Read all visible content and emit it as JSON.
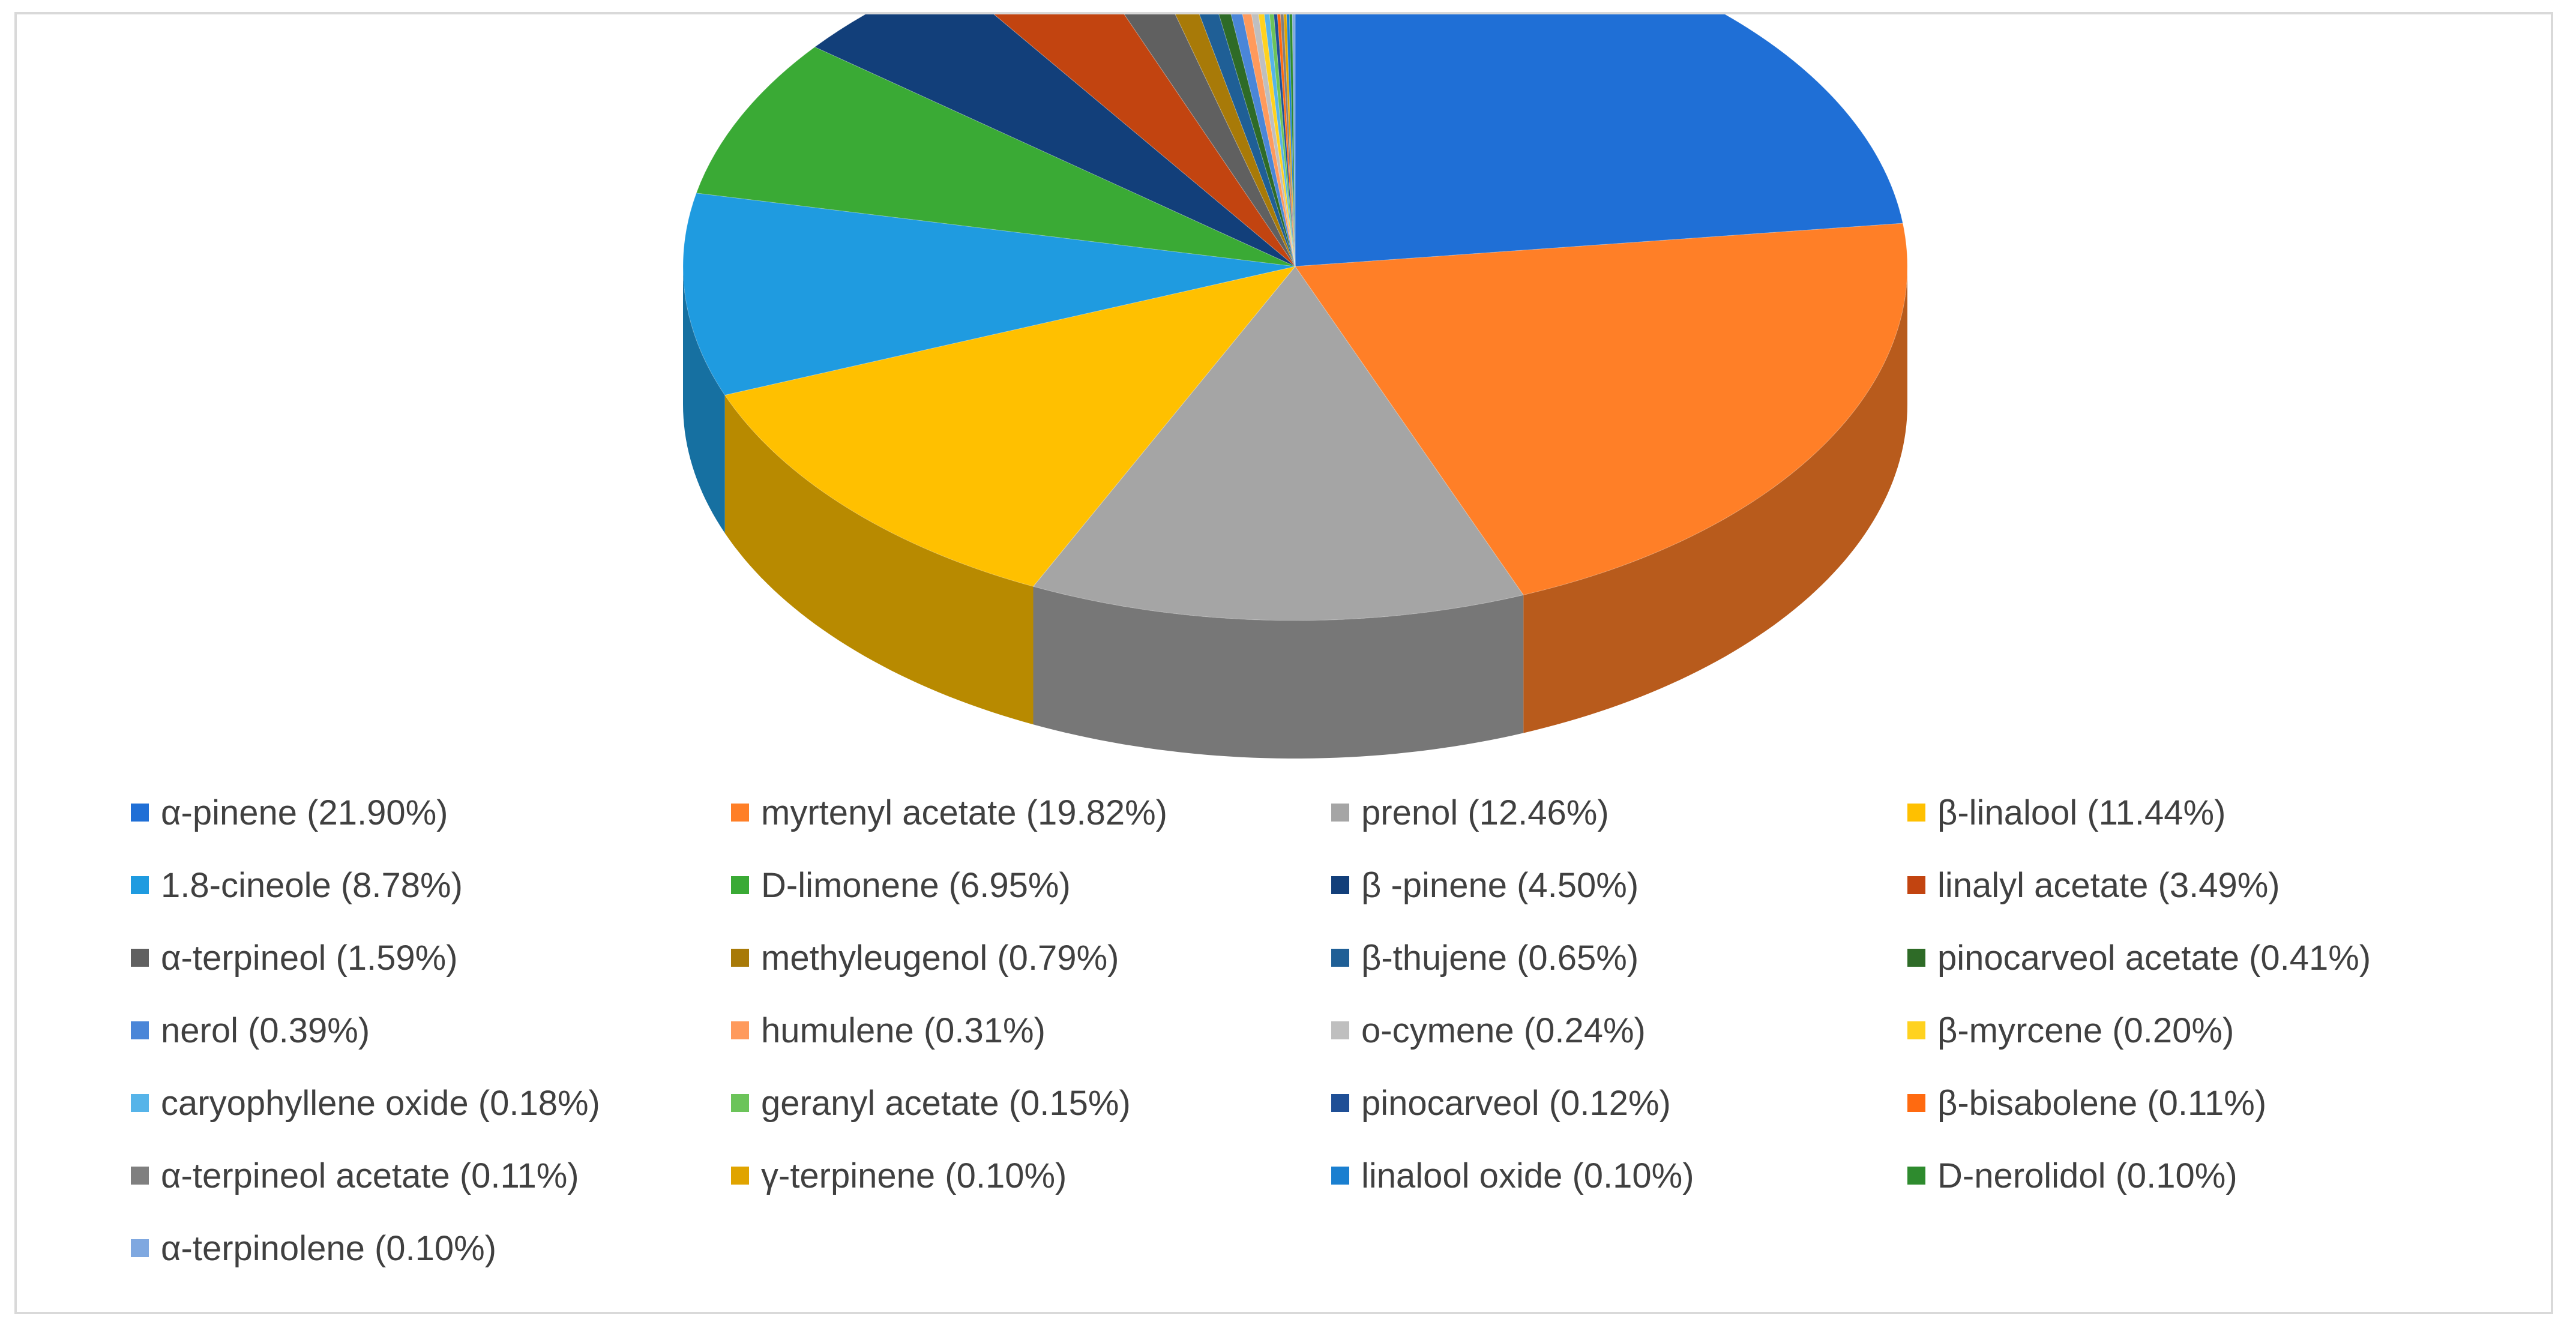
{
  "chart_data": {
    "type": "pie",
    "title": "",
    "three_d": true,
    "legend_position": "bottom",
    "slices": [
      {
        "label": "α-pinene (21.90%)",
        "name": "α-pinene",
        "value": 21.9,
        "color": "#1f6fd6"
      },
      {
        "label": "myrtenyl acetate (19.82%)",
        "name": "myrtenyl acetate",
        "value": 19.82,
        "color": "#ff7f27"
      },
      {
        "label": "prenol (12.46%)",
        "name": "prenol",
        "value": 12.46,
        "color": "#a5a5a5"
      },
      {
        "label": "β-linalool (11.44%)",
        "name": "β-linalool",
        "value": 11.44,
        "color": "#ffc000"
      },
      {
        "label": "1.8-cineole (8.78%)",
        "name": "1.8-cineole",
        "value": 8.78,
        "color": "#1f9be0"
      },
      {
        "label": "D-limonene (6.95%)",
        "name": "D-limonene",
        "value": 6.95,
        "color": "#3aaa35"
      },
      {
        "label": "β -pinene (4.50%)",
        "name": "β -pinene",
        "value": 4.5,
        "color": "#123f7a"
      },
      {
        "label": "linalyl acetate (3.49%)",
        "name": "linalyl acetate",
        "value": 3.49,
        "color": "#c24410"
      },
      {
        "label": "α-terpineol (1.59%)",
        "name": "α-terpineol",
        "value": 1.59,
        "color": "#606060"
      },
      {
        "label": "methyleugenol (0.79%)",
        "name": "methyleugenol",
        "value": 0.79,
        "color": "#a87a08"
      },
      {
        "label": "β-thujene (0.65%)",
        "name": "β-thujene",
        "value": 0.65,
        "color": "#1f5f96"
      },
      {
        "label": "pinocarveol acetate (0.41%)",
        "name": "pinocarveol acetate",
        "value": 0.41,
        "color": "#2e6b27"
      },
      {
        "label": "nerol (0.39%)",
        "name": "nerol",
        "value": 0.39,
        "color": "#4a86d8"
      },
      {
        "label": "humulene (0.31%)",
        "name": "humulene",
        "value": 0.31,
        "color": "#ff9a5c"
      },
      {
        "label": "o-cymene (0.24%)",
        "name": "o-cymene",
        "value": 0.24,
        "color": "#bfbfbf"
      },
      {
        "label": "β-myrcene (0.20%)",
        "name": "β-myrcene",
        "value": 0.2,
        "color": "#ffd21f"
      },
      {
        "label": "caryophyllene oxide (0.18%)",
        "name": "caryophyllene oxide",
        "value": 0.18,
        "color": "#56b4e9"
      },
      {
        "label": "geranyl acetate (0.15%)",
        "name": "geranyl acetate",
        "value": 0.15,
        "color": "#6cc45a"
      },
      {
        "label": "pinocarveol (0.12%)",
        "name": "pinocarveol",
        "value": 0.12,
        "color": "#1f4f96"
      },
      {
        "label": "β-bisabolene (0.11%)",
        "name": "β-bisabolene",
        "value": 0.11,
        "color": "#ff6a10"
      },
      {
        "label": "α-terpineol acetate (0.11%)",
        "name": "α-terpineol acetate",
        "value": 0.11,
        "color": "#7f7f7f"
      },
      {
        "label": "γ-terpinene (0.10%)",
        "name": "γ-terpinene",
        "value": 0.1,
        "color": "#e0a400"
      },
      {
        "label": "linalool oxide (0.10%)",
        "name": "linalool oxide",
        "value": 0.1,
        "color": "#1a7fd0"
      },
      {
        "label": "D-nerolidol (0.10%)",
        "name": "D-nerolidol",
        "value": 0.1,
        "color": "#2e8b2e"
      },
      {
        "label": "α-terpinolene (0.10%)",
        "name": "α-terpinolene",
        "value": 0.1,
        "color": "#7fa8e0"
      }
    ]
  }
}
